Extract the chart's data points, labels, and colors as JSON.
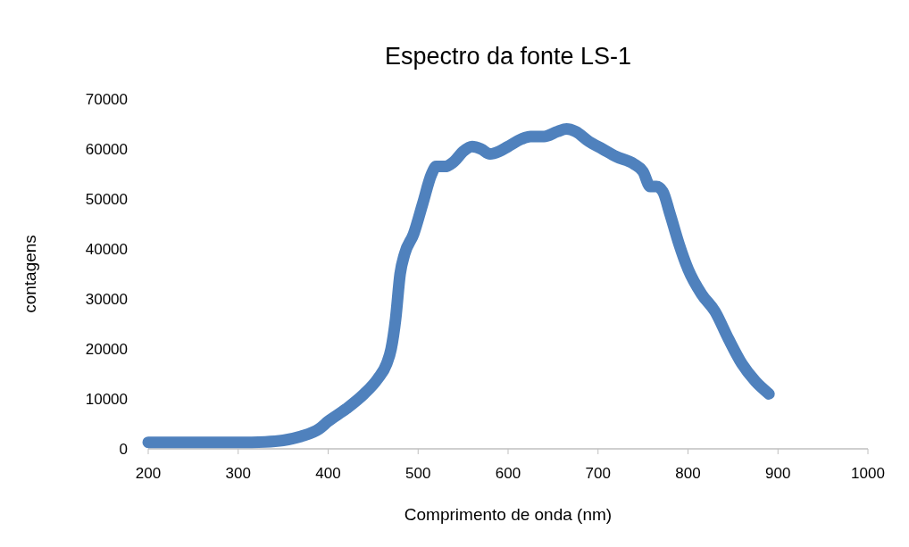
{
  "chart_data": {
    "type": "line",
    "title": "Espectro da fonte LS-1",
    "xlabel": "Comprimento de onda (nm)",
    "ylabel": "contagens",
    "x": [
      200,
      250,
      300,
      330,
      350,
      370,
      390,
      400,
      420,
      440,
      455,
      465,
      470,
      475,
      480,
      485,
      495,
      505,
      515,
      520,
      530,
      540,
      550,
      560,
      570,
      580,
      590,
      600,
      615,
      625,
      640,
      655,
      665,
      675,
      690,
      705,
      720,
      740,
      750,
      758,
      765,
      772,
      780,
      790,
      800,
      815,
      830,
      845,
      860,
      875,
      890
    ],
    "series": [
      {
        "color": "#4f81bd",
        "values": [
          1300,
          1300,
          1300,
          1400,
          1700,
          2500,
          4000,
          5500,
          8000,
          11000,
          14000,
          17000,
          20000,
          26000,
          35000,
          39000,
          43000,
          49000,
          55000,
          56500,
          56500,
          57500,
          59500,
          60500,
          60000,
          59000,
          59500,
          60500,
          62000,
          62500,
          62500,
          63500,
          64000,
          63500,
          61500,
          60000,
          58500,
          57000,
          55500,
          52500,
          52500,
          51500,
          47000,
          41000,
          36000,
          31000,
          27500,
          22000,
          17000,
          13500,
          11000
        ]
      }
    ],
    "xlim": [
      200,
      1000
    ],
    "xticks": [
      200,
      300,
      400,
      500,
      600,
      700,
      800,
      900,
      1000
    ],
    "ylim": [
      0,
      70000
    ],
    "yticks": [
      0,
      10000,
      20000,
      30000,
      40000,
      50000,
      60000,
      70000
    ],
    "marker": "none",
    "line_style": "solid"
  }
}
